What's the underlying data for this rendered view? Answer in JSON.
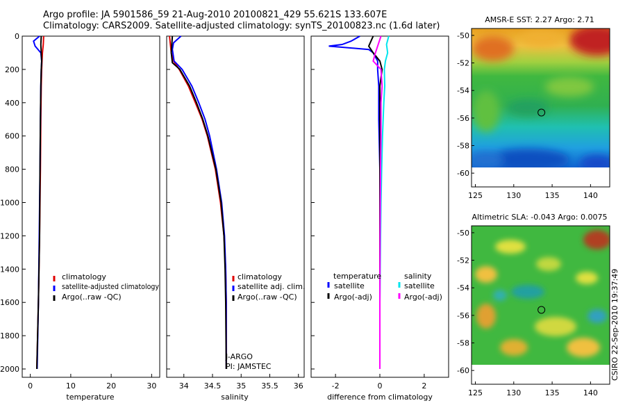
{
  "title_line1": "Argo profile: JA 5901586_59 21-Aug-2010 20100821_429 55.621S 133.607E",
  "title_line2": "Climatology: CARS2009. Satellite-adjusted climatology: synTS_20100823.nc (1.6d later)",
  "side_label": "CSIRO 22-Sep-2010 19:37:49",
  "colors": {
    "climatology": "#e00000",
    "satellite": "#0000ff",
    "argo": "#000000",
    "sal_satellite": "#00e5ee",
    "sal_argo": "#ff00ff"
  },
  "chart_data": [
    {
      "type": "line",
      "id": "temperature",
      "xlabel": "temperature",
      "ylabel": "",
      "xlim": [
        -2,
        32
      ],
      "ylim": [
        2050,
        0
      ],
      "xticks": [
        0,
        10,
        20,
        30
      ],
      "yticks": [
        0,
        200,
        400,
        600,
        800,
        1000,
        1200,
        1400,
        1600,
        1800,
        2000
      ],
      "legend": [
        "climatology",
        "satellite-adjusted climatology",
        "Argo(..raw -QC)"
      ],
      "series": [
        {
          "name": "climatology",
          "depth": [
            0,
            50,
            100,
            150,
            200,
            300,
            500,
            800,
            1200,
            1600,
            2000
          ],
          "values": [
            3.3,
            3.2,
            3.0,
            2.9,
            2.8,
            2.7,
            2.6,
            2.5,
            2.3,
            2.0,
            1.6
          ]
        },
        {
          "name": "satellite-adjusted climatology",
          "depth": [
            0,
            30,
            60,
            100,
            150,
            200,
            300,
            500,
            800,
            1200,
            1600,
            2000
          ],
          "values": [
            2.3,
            0.8,
            1.2,
            2.6,
            2.8,
            2.7,
            2.6,
            2.5,
            2.4,
            2.2,
            2.0,
            1.7
          ]
        },
        {
          "name": "Argo(..raw -QC)",
          "depth": [
            0,
            50,
            100,
            150,
            200,
            300,
            500,
            800,
            1200,
            1600,
            2000
          ],
          "values": [
            2.7,
            2.6,
            2.7,
            2.8,
            2.7,
            2.6,
            2.5,
            2.4,
            2.3,
            2.0,
            1.6
          ]
        }
      ]
    },
    {
      "type": "line",
      "id": "salinity",
      "xlabel": "salinity",
      "xlim": [
        33.7,
        36.1
      ],
      "ylim": [
        2050,
        0
      ],
      "xticks": [
        34,
        34.5,
        35,
        35.5,
        36
      ],
      "legend": [
        "climatology",
        "satellite adj. clim.",
        "Argo(..raw -QC)"
      ],
      "annotations": [
        "J-ARGO",
        "PI: JAMSTEC"
      ],
      "series": [
        {
          "name": "climatology",
          "depth": [
            0,
            100,
            150,
            200,
            300,
            400,
            500,
            600,
            800,
            1000,
            1200,
            1400,
            1600,
            2000
          ],
          "values": [
            33.75,
            33.78,
            33.82,
            33.92,
            34.08,
            34.2,
            34.32,
            34.41,
            34.55,
            34.64,
            34.7,
            34.73,
            34.74,
            34.74
          ]
        },
        {
          "name": "satellite adj. clim.",
          "depth": [
            0,
            40,
            80,
            150,
            200,
            300,
            400,
            500,
            600,
            800,
            1000,
            1200,
            1400,
            1600,
            2000
          ],
          "values": [
            33.95,
            33.82,
            33.8,
            33.83,
            33.97,
            34.14,
            34.26,
            34.37,
            34.45,
            34.57,
            34.66,
            34.71,
            34.73,
            34.74,
            34.74
          ]
        },
        {
          "name": "Argo(..raw -QC)",
          "depth": [
            0,
            100,
            160,
            200,
            300,
            400,
            500,
            600,
            800,
            1000,
            1200,
            1400,
            1600,
            2000
          ],
          "values": [
            33.8,
            33.78,
            33.8,
            33.93,
            34.1,
            34.22,
            34.33,
            34.42,
            34.56,
            34.65,
            34.7,
            34.72,
            34.73,
            34.74
          ]
        }
      ]
    },
    {
      "type": "line",
      "id": "difference",
      "xlabel": "difference from climatology",
      "xlim": [
        -3.1,
        3.1
      ],
      "ylim": [
        2050,
        0
      ],
      "xticks": [
        -2,
        0,
        2
      ],
      "legend_left_title": "temperature",
      "legend_right_title": "salinity",
      "legend": [
        "satellite",
        "Argo(-adj)",
        "satellite",
        "Argo(-adj)"
      ],
      "series": [
        {
          "name": "temperature satellite",
          "depth": [
            0,
            30,
            50,
            60,
            80,
            100,
            150,
            200,
            300,
            500,
            800,
            1200,
            1600,
            2000
          ],
          "values": [
            -0.9,
            -1.3,
            -1.7,
            -2.3,
            -0.5,
            -0.3,
            -0.1,
            -0.1,
            -0.05,
            -0.05,
            0.0,
            0.0,
            0.0,
            0.0
          ]
        },
        {
          "name": "temperature Argo(-adj)",
          "depth": [
            0,
            30,
            60,
            100,
            150,
            200,
            300,
            500,
            800,
            1200,
            1600,
            2000
          ],
          "values": [
            -0.3,
            -0.4,
            -0.5,
            -0.3,
            0.0,
            0.1,
            0.0,
            0.0,
            0.0,
            0.0,
            0.0,
            0.0
          ]
        },
        {
          "name": "salinity satellite",
          "depth": [
            0,
            50,
            100,
            150,
            200,
            300,
            400,
            600,
            800,
            1000,
            1200,
            1600,
            2000
          ],
          "values": [
            0.4,
            0.3,
            0.35,
            0.25,
            0.2,
            0.22,
            0.18,
            0.12,
            0.08,
            0.05,
            0.03,
            0.0,
            0.0
          ]
        },
        {
          "name": "salinity Argo(-adj)",
          "depth": [
            0,
            100,
            150,
            200,
            300,
            400,
            600,
            800,
            1000,
            1200,
            1600,
            2000
          ],
          "values": [
            0.05,
            -0.2,
            -0.3,
            0.05,
            0.1,
            0.05,
            0.05,
            0.03,
            0.02,
            0.01,
            0.0,
            0.0
          ]
        }
      ]
    },
    {
      "type": "heatmap",
      "id": "sst",
      "title": "AMSR-E SST: 2.27 Argo: 2.71",
      "xlim": [
        124.5,
        142.5
      ],
      "ylim": [
        -61,
        -49.5
      ],
      "xticks": [
        125,
        130,
        135,
        140
      ],
      "yticks": [
        -50,
        -52,
        -54,
        -56,
        -58,
        -60
      ],
      "data_extent": {
        "lon": [
          124.5,
          142.5
        ],
        "lat": [
          -60,
          -49.5
        ]
      },
      "marker": {
        "lon": 133.6,
        "lat": -55.6
      }
    },
    {
      "type": "heatmap",
      "id": "sla",
      "title": "Altimetric SLA: -0.043 Argo: 0.0075",
      "xlim": [
        124.5,
        142.5
      ],
      "ylim": [
        -61,
        -49.5
      ],
      "xticks": [
        125,
        130,
        135,
        140
      ],
      "yticks": [
        -50,
        -52,
        -54,
        -56,
        -58,
        -60
      ],
      "data_extent": {
        "lon": [
          124.5,
          142.5
        ],
        "lat": [
          -60,
          -49.5
        ]
      },
      "marker": {
        "lon": 133.6,
        "lat": -55.6
      }
    }
  ]
}
